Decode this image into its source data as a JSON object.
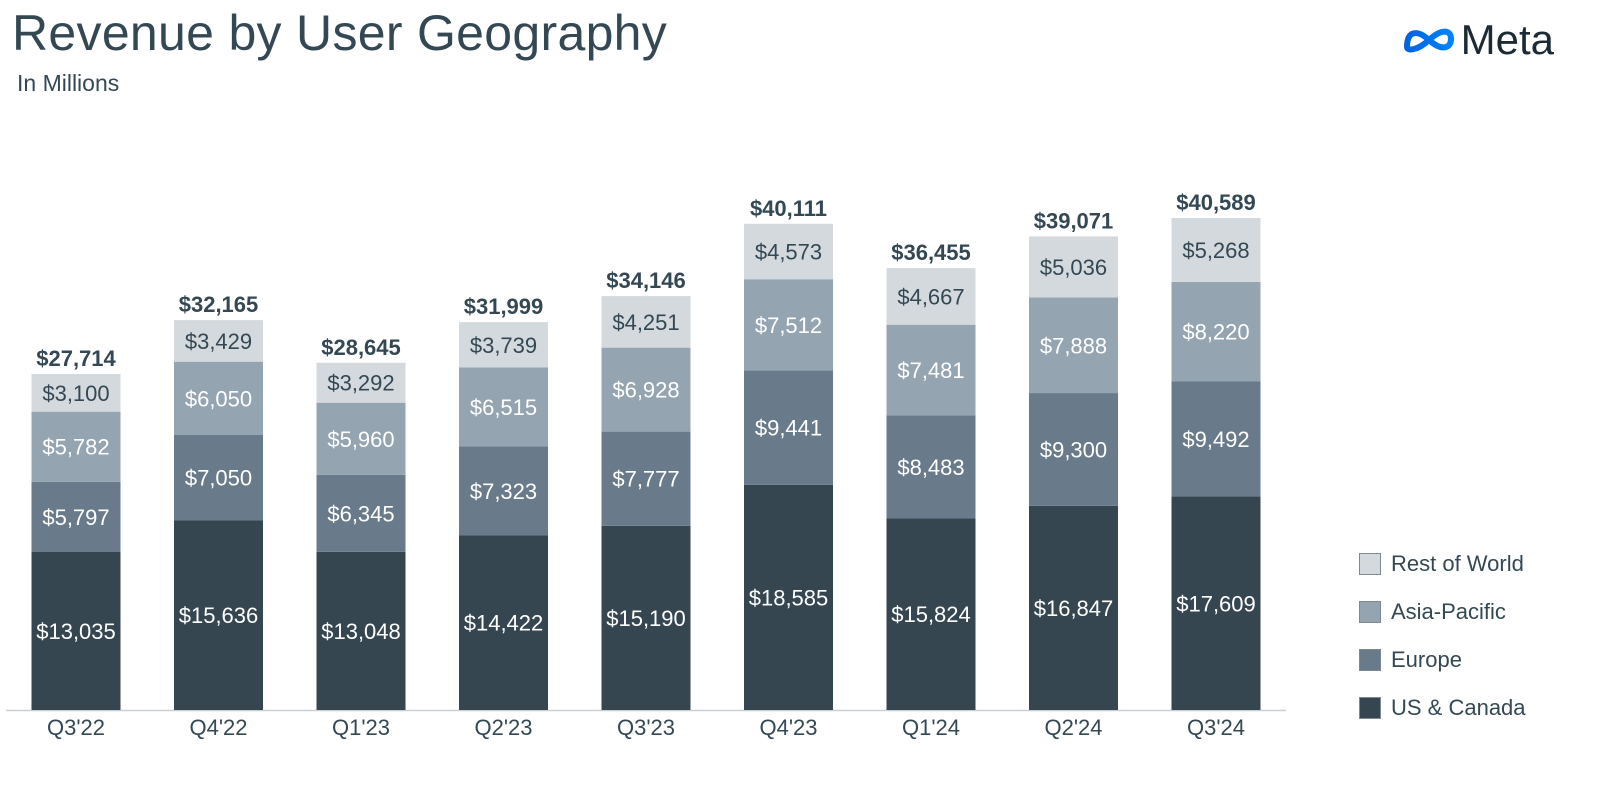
{
  "header": {
    "title": "Revenue by User Geography",
    "subtitle": "In Millions",
    "logo_text": "Meta",
    "logo_icon": "meta-infinity-icon"
  },
  "colors": {
    "rest_of_world": "#d4d9dd",
    "asia_pacific": "#94a4b1",
    "europe": "#697b8b",
    "us_canada": "#354651",
    "total_label": "#344854",
    "logo_blue": "#1877f2"
  },
  "chart_data": {
    "type": "bar",
    "stacked": true,
    "categories": [
      "Q3'22",
      "Q4'22",
      "Q1'23",
      "Q2'23",
      "Q3'23",
      "Q4'23",
      "Q1'24",
      "Q2'24",
      "Q3'24"
    ],
    "series": [
      {
        "name": "US & Canada",
        "values": [
          13035,
          15636,
          13048,
          14422,
          15190,
          18585,
          15824,
          16847,
          17609
        ],
        "labels": [
          "$13,035",
          "$15,636",
          "$13,048",
          "$14,422",
          "$15,190",
          "$18,585",
          "$15,824",
          "$16,847",
          "$17,609"
        ]
      },
      {
        "name": "Europe",
        "values": [
          5797,
          7050,
          6345,
          7323,
          7777,
          9441,
          8483,
          9300,
          9492
        ],
        "labels": [
          "$5,797",
          "$7,050",
          "$6,345",
          "$7,323",
          "$7,777",
          "$9,441",
          "$8,483",
          "$9,300",
          "$9,492"
        ]
      },
      {
        "name": "Asia-Pacific",
        "values": [
          5782,
          6050,
          5960,
          6515,
          6928,
          7512,
          7481,
          7888,
          8220
        ],
        "labels": [
          "$5,782",
          "$6,050",
          "$5,960",
          "$6,515",
          "$6,928",
          "$7,512",
          "$7,481",
          "$7,888",
          "$8,220"
        ]
      },
      {
        "name": "Rest of World",
        "values": [
          3100,
          3429,
          3292,
          3739,
          4251,
          4573,
          4667,
          5036,
          5268
        ],
        "labels": [
          "$3,100",
          "$3,429",
          "$3,292",
          "$3,739",
          "$4,251",
          "$4,573",
          "$4,667",
          "$5,036",
          "$5,268"
        ]
      }
    ],
    "totals": [
      27714,
      32165,
      28645,
      31999,
      34146,
      40111,
      36455,
      39071,
      40589
    ],
    "total_labels": [
      "$27,714",
      "$32,165",
      "$28,645",
      "$31,999",
      "$34,146",
      "$40,111",
      "$36,455",
      "$39,071",
      "$40,589"
    ],
    "ylim": [
      0,
      40589
    ],
    "grid": false,
    "legend_position": "right"
  },
  "legend": [
    {
      "label": "Rest of World",
      "color": "#d4d9dd"
    },
    {
      "label": "Asia-Pacific",
      "color": "#94a4b1"
    },
    {
      "label": "Europe",
      "color": "#697b8b"
    },
    {
      "label": "US & Canada",
      "color": "#354651"
    }
  ]
}
